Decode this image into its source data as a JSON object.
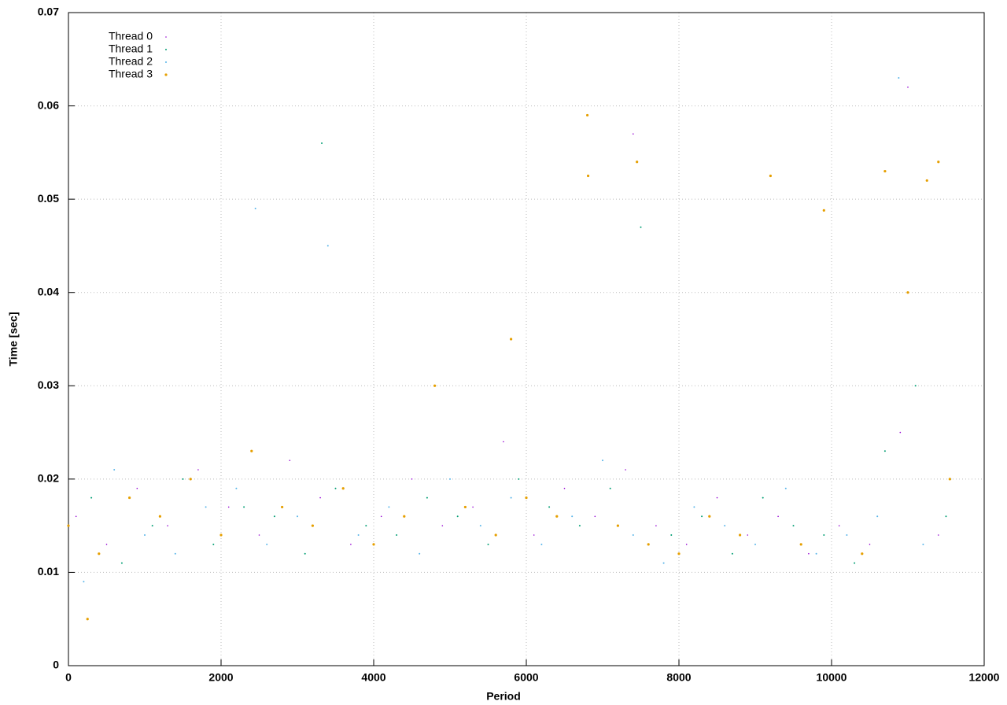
{
  "chart_data": {
    "type": "scatter",
    "x_label": "Period",
    "y_label": "Time [sec]",
    "xlim": [
      0,
      12000
    ],
    "xticks": [
      0,
      2000,
      4000,
      6000,
      8000,
      10000,
      12000
    ],
    "ylim": [
      0,
      0.07
    ],
    "yticks": [
      0,
      0.01,
      0.02,
      0.03,
      0.04,
      0.05,
      0.06,
      0.07
    ],
    "grid": true,
    "legend": "top-left",
    "series": [
      {
        "name": "Thread 0",
        "color": "#9400d3",
        "x": [
          100,
          500,
          900,
          1300,
          1700,
          2100,
          2500,
          2900,
          3300,
          3700,
          4100,
          4500,
          4900,
          5300,
          5700,
          6100,
          6500,
          6900,
          7300,
          7400,
          7700,
          8100,
          8500,
          8900,
          9300,
          9700,
          10100,
          10500,
          10900,
          11000,
          11400
        ],
        "values": [
          0.016,
          0.013,
          0.019,
          0.015,
          0.021,
          0.017,
          0.014,
          0.022,
          0.018,
          0.013,
          0.016,
          0.02,
          0.015,
          0.017,
          0.024,
          0.014,
          0.019,
          0.016,
          0.021,
          0.057,
          0.015,
          0.013,
          0.018,
          0.014,
          0.016,
          0.012,
          0.015,
          0.013,
          0.025,
          0.062,
          0.014
        ]
      },
      {
        "name": "Thread 1",
        "color": "#009e73",
        "x": [
          300,
          700,
          1100,
          1500,
          1900,
          2300,
          2700,
          3100,
          3320,
          3500,
          3900,
          4300,
          4700,
          5100,
          5500,
          5900,
          6300,
          6700,
          7100,
          7500,
          7900,
          8300,
          8700,
          9100,
          9500,
          9900,
          10300,
          10700,
          11100,
          11500
        ],
        "values": [
          0.018,
          0.011,
          0.015,
          0.02,
          0.013,
          0.017,
          0.016,
          0.012,
          0.056,
          0.019,
          0.015,
          0.014,
          0.018,
          0.016,
          0.013,
          0.02,
          0.017,
          0.015,
          0.019,
          0.047,
          0.014,
          0.016,
          0.012,
          0.018,
          0.015,
          0.014,
          0.011,
          0.023,
          0.03,
          0.016
        ]
      },
      {
        "name": "Thread 2",
        "color": "#56b4e9",
        "x": [
          200,
          600,
          1000,
          1400,
          1800,
          2200,
          2450,
          2600,
          3000,
          3400,
          3800,
          4200,
          4600,
          5000,
          5400,
          5800,
          6200,
          6600,
          7000,
          7400,
          7800,
          8200,
          8600,
          9000,
          9400,
          9800,
          10200,
          10600,
          10880,
          11200,
          11560
        ],
        "values": [
          0.009,
          0.021,
          0.014,
          0.012,
          0.017,
          0.019,
          0.049,
          0.013,
          0.016,
          0.045,
          0.014,
          0.017,
          0.012,
          0.02,
          0.015,
          0.018,
          0.013,
          0.016,
          0.022,
          0.014,
          0.011,
          0.017,
          0.015,
          0.013,
          0.019,
          0.012,
          0.014,
          0.016,
          0.063,
          0.013,
          0.02
        ]
      },
      {
        "name": "Thread 3",
        "color": "#e69f00",
        "x": [
          0,
          250,
          400,
          800,
          1200,
          1600,
          2000,
          2400,
          2800,
          3200,
          3600,
          4000,
          4400,
          4800,
          5200,
          5600,
          5800,
          6000,
          6400,
          6800,
          6810,
          7200,
          7450,
          7600,
          8000,
          8400,
          8800,
          9200,
          9600,
          9900,
          10400,
          10700,
          11000,
          11250,
          11400,
          11550
        ],
        "values": [
          0.015,
          0.005,
          0.012,
          0.018,
          0.016,
          0.02,
          0.014,
          0.023,
          0.017,
          0.015,
          0.019,
          0.013,
          0.016,
          0.03,
          0.017,
          0.014,
          0.035,
          0.018,
          0.016,
          0.059,
          0.0525,
          0.015,
          0.054,
          0.013,
          0.012,
          0.016,
          0.014,
          0.0525,
          0.013,
          0.0488,
          0.012,
          0.053,
          0.04,
          0.052,
          0.054,
          0.02
        ]
      }
    ]
  }
}
